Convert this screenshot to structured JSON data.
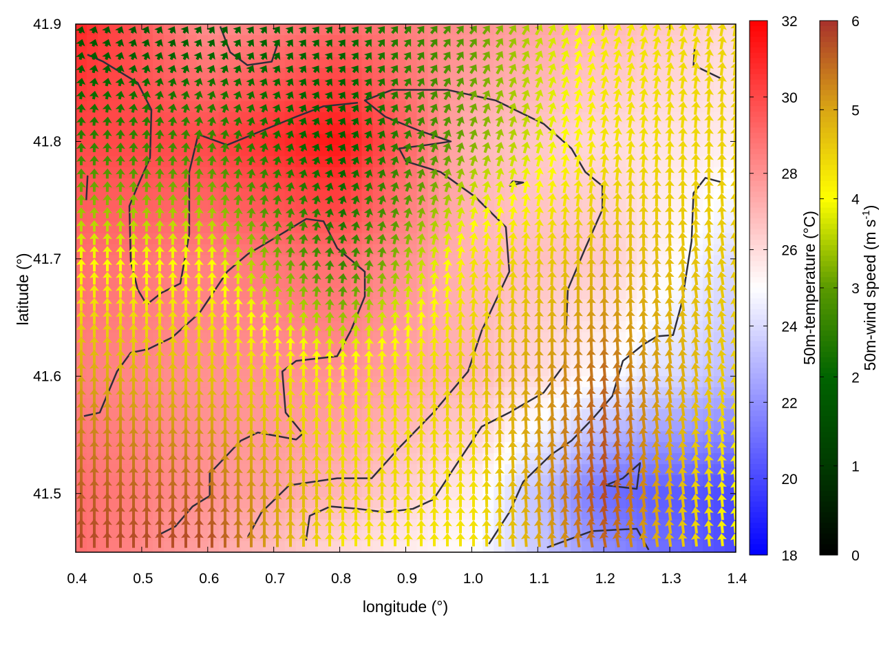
{
  "chart_data": {
    "type": "heatmap",
    "title": "",
    "xlabel": "longitude (°)",
    "ylabel": "latitude (°)",
    "xlim": [
      0.4,
      1.4
    ],
    "ylim": [
      41.45,
      41.9
    ],
    "xticks": [
      "0.4",
      "0.5",
      "0.6",
      "0.7",
      "0.8",
      "0.9",
      "1.0",
      "1.1",
      "1.2",
      "1.3",
      "1.4"
    ],
    "yticks": [
      "41.5",
      "41.6",
      "41.7",
      "41.8",
      "41.9"
    ],
    "grid": false,
    "temperature": {
      "label": "50m-temperature (°C)",
      "cbrange": [
        18,
        32
      ],
      "cbticks": [
        "18",
        "20",
        "22",
        "24",
        "26",
        "28",
        "30",
        "32"
      ],
      "colormap": {
        "low": "#0000ff",
        "mid": "#ffffff",
        "high": "#ff0000"
      },
      "grid_lon": [
        0.4,
        0.6,
        0.8,
        1.0,
        1.2,
        1.4
      ],
      "grid_lat": [
        41.9,
        41.8,
        41.7,
        41.6,
        41.5,
        41.45
      ],
      "values": [
        [
          31,
          28,
          29,
          28,
          27,
          26
        ],
        [
          30,
          30,
          31.5,
          27,
          26,
          25.5
        ],
        [
          29,
          28.5,
          29,
          27,
          26.5,
          24
        ],
        [
          28.5,
          28,
          28,
          27,
          25,
          23
        ],
        [
          29,
          28,
          27,
          25.5,
          21,
          20
        ],
        [
          29,
          27.5,
          26,
          25,
          22,
          20
        ]
      ]
    },
    "wind": {
      "label": "50m-wind speed (m s",
      "label_sup": "-1",
      "label_end": ")",
      "cbrange": [
        0,
        6
      ],
      "cbticks": [
        "0",
        "1",
        "2",
        "3",
        "4",
        "5",
        "6"
      ],
      "colormap": [
        "#000000",
        "#003a00",
        "#006400",
        "#5a9a00",
        "#ffff00",
        "#d9a514",
        "#a8302c"
      ],
      "grid_lon": [
        0.4,
        0.6,
        0.8,
        1.0,
        1.2,
        1.4
      ],
      "grid_lat": [
        41.9,
        41.8,
        41.7,
        41.6,
        41.5,
        41.45
      ],
      "speed": [
        [
          1.5,
          1.8,
          2.0,
          3.0,
          4.2,
          4.5
        ],
        [
          2.5,
          2.7,
          1.8,
          3.2,
          4.3,
          4.5
        ],
        [
          4.0,
          4.0,
          2.5,
          4.3,
          4.8,
          4.6
        ],
        [
          5.0,
          4.7,
          4.2,
          4.6,
          5.5,
          4.5
        ],
        [
          5.6,
          5.5,
          4.5,
          4.3,
          5.8,
          4.0
        ],
        [
          5.8,
          5.8,
          4.2,
          4.3,
          5.5,
          4.0
        ]
      ],
      "direction_deg": [
        [
          20,
          35,
          40,
          40,
          20,
          10
        ],
        [
          0,
          10,
          30,
          20,
          10,
          0
        ],
        [
          0,
          0,
          10,
          10,
          0,
          -10
        ],
        [
          0,
          0,
          0,
          0,
          -5,
          -10
        ],
        [
          0,
          0,
          0,
          0,
          -10,
          -5
        ],
        [
          0,
          0,
          0,
          0,
          -10,
          -5
        ]
      ]
    },
    "contours": [
      [
        [
          0.4125,
          41.566
        ],
        [
          0.4365,
          41.569
        ],
        [
          0.4626,
          41.604
        ],
        [
          0.4834,
          41.62
        ],
        [
          0.5095,
          41.623
        ],
        [
          0.546,
          41.633
        ],
        [
          0.5877,
          41.654
        ],
        [
          0.6294,
          41.689
        ],
        [
          0.6607,
          41.704
        ],
        [
          0.7024,
          41.718
        ],
        [
          0.7493,
          41.734
        ],
        [
          0.7754,
          41.732
        ],
        [
          0.7962,
          41.709
        ],
        [
          0.838,
          41.689
        ],
        [
          0.838,
          41.668
        ],
        [
          0.817,
          41.639
        ],
        [
          0.796,
          41.617
        ],
        [
          0.734,
          41.613
        ],
        [
          0.713,
          41.604
        ],
        [
          0.718,
          41.569
        ],
        [
          0.744,
          41.551
        ],
        [
          0.734,
          41.546
        ],
        [
          0.676,
          41.552
        ],
        [
          0.65,
          41.545
        ],
        [
          0.603,
          41.517
        ],
        [
          0.603,
          41.498
        ],
        [
          0.577,
          41.489
        ],
        [
          0.551,
          41.472
        ],
        [
          0.523,
          41.464
        ]
      ],
      [
        [
          0.6607,
          41.463
        ],
        [
          0.6815,
          41.484
        ],
        [
          0.7233,
          41.507
        ],
        [
          0.7962,
          41.513
        ],
        [
          0.8484,
          41.513
        ],
        [
          0.89,
          41.539
        ],
        [
          0.942,
          41.569
        ],
        [
          0.9944,
          41.604
        ],
        [
          1.0152,
          41.639
        ],
        [
          1.0569,
          41.689
        ],
        [
          1.0517,
          41.727
        ],
        [
          1.0048,
          41.753
        ],
        [
          0.9527,
          41.774
        ],
        [
          0.9005,
          41.783
        ],
        [
          0.89,
          41.794
        ],
        [
          0.9318,
          41.797
        ],
        [
          0.9683,
          41.8
        ],
        [
          0.9214,
          41.809
        ],
        [
          0.8692,
          41.821
        ],
        [
          0.838,
          41.835
        ],
        [
          0.8797,
          41.844
        ],
        [
          0.963,
          41.844
        ],
        [
          1.036,
          41.835
        ],
        [
          1.109,
          41.815
        ],
        [
          1.151,
          41.794
        ],
        [
          1.172,
          41.774
        ],
        [
          1.198,
          41.762
        ],
        [
          1.198,
          41.742
        ],
        [
          1.172,
          41.709
        ],
        [
          1.1456,
          41.674
        ],
        [
          1.1404,
          41.61
        ],
        [
          1.109,
          41.586
        ],
        [
          1.057,
          41.569
        ],
        [
          1.015,
          41.557
        ],
        [
          0.9735,
          41.522
        ],
        [
          0.942,
          41.495
        ],
        [
          0.911,
          41.487
        ],
        [
          0.869,
          41.484
        ],
        [
          0.8275,
          41.487
        ],
        [
          0.7858,
          41.489
        ],
        [
          0.7545,
          41.481
        ],
        [
          0.749,
          41.46
        ]
      ],
      [
        [
          0.4177,
          41.874
        ],
        [
          0.4417,
          41.868
        ],
        [
          0.4938,
          41.85
        ],
        [
          0.5147,
          41.827
        ],
        [
          0.5126,
          41.786
        ],
        [
          0.4938,
          41.762
        ],
        [
          0.4813,
          41.745
        ],
        [
          0.4834,
          41.698
        ],
        [
          0.4938,
          41.674
        ],
        [
          0.5074,
          41.661
        ],
        [
          0.53,
          41.671
        ],
        [
          0.5585,
          41.679
        ],
        [
          0.572,
          41.721
        ],
        [
          0.572,
          41.774
        ],
        [
          0.5856,
          41.806
        ],
        [
          0.6294,
          41.797
        ],
        [
          0.6815,
          41.809
        ],
        [
          0.7337,
          41.821
        ],
        [
          0.7754,
          41.83
        ],
        [
          0.8275,
          41.833
        ]
      ],
      [
        [
          1.38,
          41.765
        ],
        [
          1.354,
          41.769
        ],
        [
          1.336,
          41.756
        ],
        [
          1.333,
          41.715
        ],
        [
          1.318,
          41.662
        ],
        [
          1.305,
          41.635
        ],
        [
          1.281,
          41.634
        ],
        [
          1.26,
          41.627
        ],
        [
          1.229,
          41.613
        ],
        [
          1.213,
          41.583
        ],
        [
          1.182,
          41.563
        ],
        [
          1.151,
          41.545
        ],
        [
          1.12,
          41.533
        ],
        [
          1.078,
          41.51
        ],
        [
          1.057,
          41.484
        ],
        [
          1.026,
          41.457
        ]
      ],
      [
        [
          1.338,
          41.882
        ],
        [
          1.336,
          41.865
        ],
        [
          1.38,
          41.853
        ]
      ],
      [
        [
          1.114,
          41.454
        ],
        [
          1.182,
          41.468
        ],
        [
          1.25,
          41.47
        ],
        [
          1.268,
          41.452
        ]
      ],
      [
        [
          1.203,
          41.507
        ],
        [
          1.25,
          41.504
        ],
        [
          1.255,
          41.526
        ],
        [
          1.229,
          41.513
        ],
        [
          1.203,
          41.507
        ]
      ],
      [
        [
          0.619,
          41.898
        ],
        [
          0.634,
          41.876
        ],
        [
          0.66,
          41.865
        ],
        [
          0.697,
          41.868
        ],
        [
          0.707,
          41.885
        ]
      ],
      [
        [
          1.057,
          41.762
        ],
        [
          1.078,
          41.765
        ],
        [
          1.062,
          41.766
        ],
        [
          1.057,
          41.762
        ]
      ],
      [
        [
          0.418,
          41.771
        ],
        [
          0.416,
          41.75
        ]
      ]
    ]
  }
}
